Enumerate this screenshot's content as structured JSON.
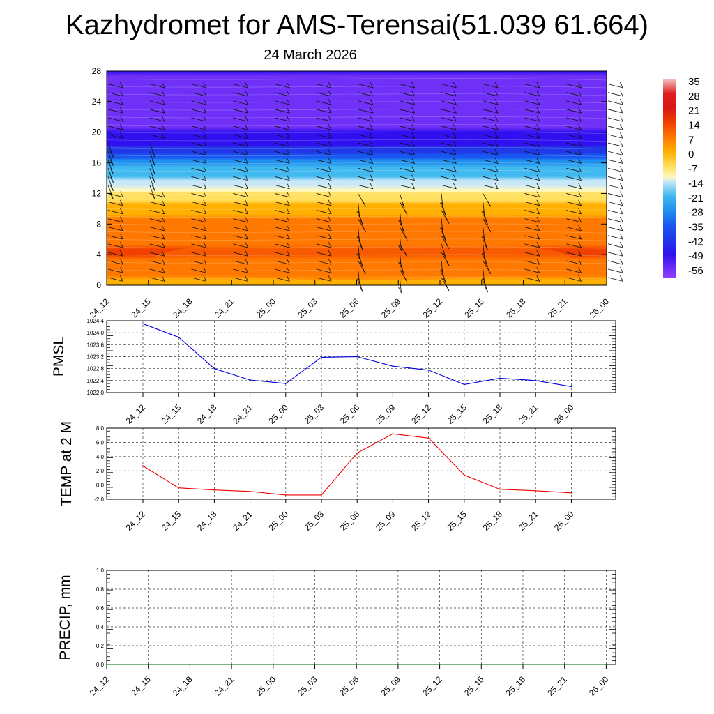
{
  "title": "Kazhydromet for AMS-Terensai(51.039 61.664)",
  "subtitle": "24 March 2026",
  "chart_data": [
    {
      "name": "vertical-cross-section",
      "type": "heatmap",
      "title": "",
      "xlabel": "",
      "ylabel": "",
      "x_ticks": [
        "24_12",
        "24_15",
        "24_18",
        "24_21",
        "25_00",
        "25_03",
        "25_06",
        "25_09",
        "25_12",
        "25_15",
        "25_18",
        "25_21",
        "26_00"
      ],
      "y_ticks": [
        0,
        4,
        8,
        12,
        16,
        20,
        24,
        28
      ],
      "ylim": [
        0,
        28
      ],
      "colorbar": {
        "labels": [
          "35",
          "28",
          "21",
          "14",
          "7",
          "0",
          "-7",
          "-14",
          "-21",
          "-28",
          "-35",
          "-42",
          "-49",
          "-56"
        ],
        "stops": [
          {
            "v": 35,
            "c": "#f4c4c4"
          },
          {
            "v": 28,
            "c": "#e02020"
          },
          {
            "v": 21,
            "c": "#d81818"
          },
          {
            "v": 14,
            "c": "#f04000"
          },
          {
            "v": 7,
            "c": "#ff7800"
          },
          {
            "v": 0,
            "c": "#ffb000"
          },
          {
            "v": -7,
            "c": "#ffe060"
          },
          {
            "v": -12,
            "c": "#fff8c0"
          },
          {
            "v": -14,
            "c": "#c8e8f8"
          },
          {
            "v": -21,
            "c": "#40b8f0"
          },
          {
            "v": -28,
            "c": "#2090f0"
          },
          {
            "v": -35,
            "c": "#1858f0"
          },
          {
            "v": -42,
            "c": "#2038e8"
          },
          {
            "v": -49,
            "c": "#3010f0"
          },
          {
            "v": -56,
            "c": "#7030f8"
          },
          {
            "v": -60,
            "c": "#9040ff"
          }
        ]
      },
      "field_profile": [
        {
          "level": 0,
          "value": -2
        },
        {
          "level": 4,
          "value": 8
        },
        {
          "level": 8,
          "value": 4
        },
        {
          "level": 11.8,
          "value": -10
        },
        {
          "level": 12.5,
          "value": -14
        },
        {
          "level": 16,
          "value": -30
        },
        {
          "level": 18,
          "value": -49
        },
        {
          "level": 20,
          "value": -56
        },
        {
          "level": 24,
          "value": -58
        },
        {
          "level": 28,
          "value": -56
        }
      ]
    },
    {
      "name": "pmsl",
      "type": "line",
      "ylabel": "PMSL",
      "categories": [
        "24_12",
        "24_15",
        "24_18",
        "24_21",
        "25_00",
        "25_03",
        "25_06",
        "25_09",
        "25_12",
        "25_15",
        "25_18",
        "25_21",
        "26_00"
      ],
      "values": [
        1024.3,
        1023.85,
        1022.8,
        1022.42,
        1022.3,
        1023.18,
        1023.2,
        1022.88,
        1022.75,
        1022.27,
        1022.48,
        1022.4,
        1022.2
      ],
      "ylim": [
        1022.0,
        1024.4
      ],
      "y_ticks": [
        "1022.0",
        "1022.4",
        "1022.8",
        "1023.2",
        "1023.6",
        "1024.0",
        "1024.4"
      ],
      "color": "#0000dd"
    },
    {
      "name": "temp-2m",
      "type": "line",
      "ylabel": "TEMP at 2 M",
      "categories": [
        "24_12",
        "24_15",
        "24_18",
        "24_21",
        "25_00",
        "25_03",
        "25_06",
        "25_09",
        "25_12",
        "25_15",
        "25_18",
        "25_21",
        "26_00"
      ],
      "values": [
        2.7,
        -0.4,
        -0.7,
        -0.9,
        -1.4,
        -1.4,
        4.5,
        7.2,
        6.6,
        1.4,
        -0.6,
        -0.8,
        -1.1
      ],
      "ylim": [
        -2.0,
        8.0
      ],
      "y_ticks": [
        "-2.0",
        "0.0",
        "2.0",
        "4.0",
        "6.0",
        "8.0"
      ],
      "color": "#ee0000"
    },
    {
      "name": "precip",
      "type": "line",
      "ylabel": "PRECIP, mm",
      "categories": [
        "24_12",
        "24_15",
        "24_18",
        "24_21",
        "25_00",
        "25_03",
        "25_06",
        "25_09",
        "25_12",
        "25_15",
        "25_18",
        "25_21",
        "26_00"
      ],
      "values": [
        0,
        0,
        0,
        0,
        0,
        0,
        0,
        0,
        0,
        0,
        0,
        0,
        0
      ],
      "ylim": [
        0.0,
        1.0
      ],
      "y_ticks": [
        "0.0",
        "0.2",
        "0.4",
        "0.6",
        "0.8",
        "1.0"
      ],
      "color": "#006600"
    }
  ]
}
